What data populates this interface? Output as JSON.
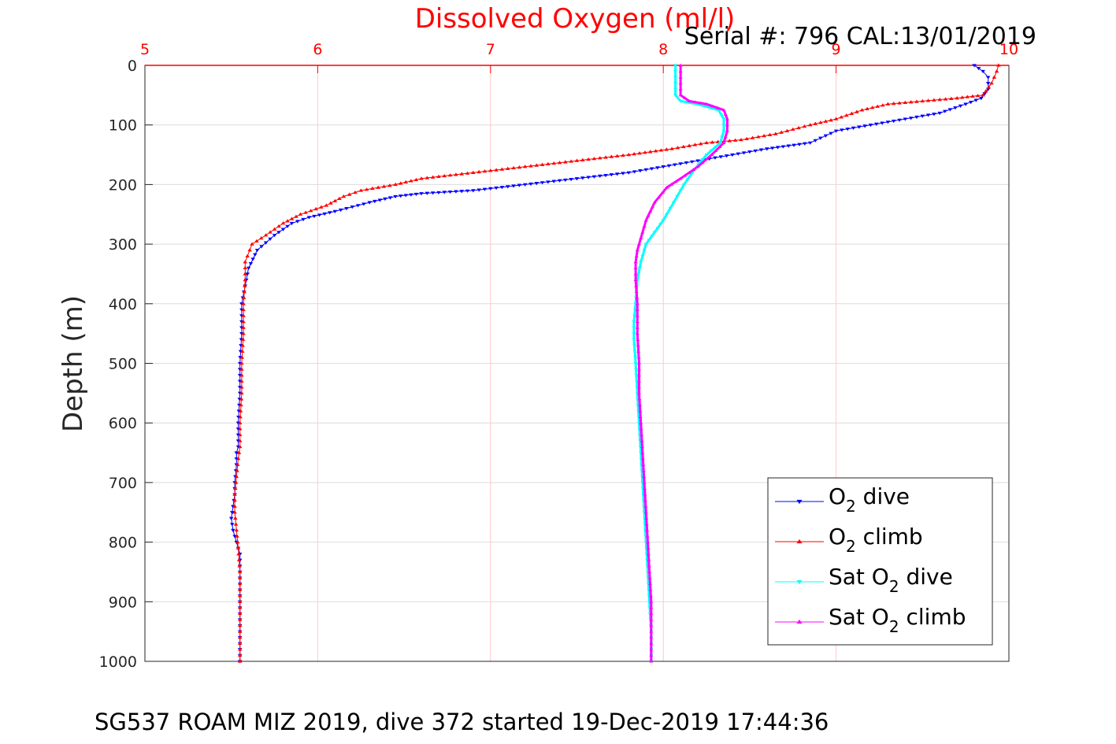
{
  "chart_data": {
    "type": "scatter",
    "title": "Dissolved Oxygen (ml/l)",
    "subtitle": "Serial #: 796  CAL:13/01/2019",
    "xlabel": "",
    "ylabel": "Depth (m)",
    "caption": "SG537 ROAM MIZ 2019, dive 372 started 19-Dec-2019 17:44:36",
    "xlim": [
      5,
      10
    ],
    "ylim": [
      0,
      1000
    ],
    "y_reversed": true,
    "x_axis_position": "top",
    "xticks": [
      "5",
      "6",
      "7",
      "8",
      "9",
      "10"
    ],
    "yticks": [
      "0",
      "100",
      "200",
      "300",
      "400",
      "500",
      "600",
      "700",
      "800",
      "900",
      "1000"
    ],
    "grid": true,
    "legend_position": "bottom-right",
    "series": [
      {
        "name_parts": [
          "O",
          "2",
          " dive"
        ],
        "color": "#0000ff",
        "marker": "triangle-down",
        "x": [
          9.8,
          9.85,
          9.88,
          9.88,
          9.84,
          9.75,
          9.6,
          9.4,
          9.2,
          9.0,
          8.85,
          8.6,
          8.4,
          8.2,
          8.0,
          7.8,
          7.5,
          7.2,
          6.9,
          6.6,
          6.45,
          6.3,
          6.1,
          5.95,
          5.85,
          5.75,
          5.65,
          5.6,
          5.58,
          5.56,
          5.56,
          5.55,
          5.55,
          5.54,
          5.54,
          5.53,
          5.53,
          5.52,
          5.52,
          5.51,
          5.5,
          5.51,
          5.53,
          5.55,
          5.55,
          5.55,
          5.55,
          5.55,
          5.55,
          5.55,
          5.55
        ],
        "y": [
          0,
          10,
          20,
          40,
          55,
          65,
          80,
          90,
          100,
          110,
          130,
          140,
          150,
          160,
          170,
          180,
          190,
          200,
          210,
          215,
          220,
          230,
          245,
          255,
          265,
          285,
          310,
          340,
          370,
          400,
          450,
          500,
          550,
          600,
          640,
          650,
          670,
          700,
          720,
          740,
          760,
          780,
          800,
          820,
          840,
          860,
          880,
          900,
          930,
          960,
          1000
        ]
      },
      {
        "name_parts": [
          "O",
          "2",
          " climb"
        ],
        "color": "#ff0000",
        "marker": "triangle-up",
        "x": [
          9.94,
          9.93,
          9.9,
          9.85,
          9.7,
          9.5,
          9.3,
          9.15,
          9.0,
          8.85,
          8.65,
          8.45,
          8.25,
          8.05,
          7.8,
          7.5,
          7.2,
          6.9,
          6.6,
          6.45,
          6.25,
          6.15,
          6.05,
          5.9,
          5.8,
          5.7,
          5.62,
          5.58,
          5.58,
          5.57,
          5.57,
          5.56,
          5.56,
          5.55,
          5.55,
          5.54,
          5.53,
          5.52,
          5.52,
          5.53,
          5.54,
          5.55,
          5.55,
          5.55,
          5.55,
          5.55,
          5.55
        ],
        "y": [
          0,
          10,
          30,
          50,
          55,
          60,
          65,
          75,
          90,
          100,
          115,
          125,
          130,
          140,
          150,
          160,
          170,
          180,
          190,
          200,
          210,
          220,
          235,
          250,
          265,
          285,
          300,
          330,
          360,
          400,
          450,
          500,
          550,
          600,
          640,
          660,
          690,
          720,
          750,
          780,
          810,
          850,
          880,
          910,
          940,
          970,
          1000
        ]
      },
      {
        "name_parts": [
          "Sat O",
          "2",
          " dive"
        ],
        "color": "#00ffff",
        "marker": "triangle-down",
        "x": [
          8.07,
          8.07,
          8.07,
          8.07,
          8.1,
          8.2,
          8.32,
          8.35,
          8.35,
          8.33,
          8.25,
          8.18,
          8.12,
          8.08,
          8.04,
          8.0,
          7.95,
          7.9,
          7.87,
          7.85,
          7.84,
          7.83,
          7.83,
          7.84,
          7.85,
          7.86,
          7.87,
          7.88,
          7.89,
          7.9,
          7.91,
          7.92,
          7.93,
          7.93,
          7.93
        ],
        "y": [
          0,
          20,
          40,
          50,
          60,
          65,
          75,
          90,
          110,
          130,
          150,
          175,
          200,
          220,
          240,
          260,
          280,
          300,
          330,
          360,
          400,
          430,
          460,
          500,
          550,
          600,
          650,
          700,
          750,
          800,
          850,
          900,
          950,
          980,
          1000
        ]
      },
      {
        "name_parts": [
          "Sat O",
          "2",
          " climb"
        ],
        "color": "#ff00ff",
        "marker": "triangle-up",
        "x": [
          8.1,
          8.1,
          8.1,
          8.1,
          8.15,
          8.25,
          8.35,
          8.37,
          8.37,
          8.35,
          8.28,
          8.2,
          8.1,
          8.02,
          7.95,
          7.9,
          7.87,
          7.85,
          7.84,
          7.84,
          7.85,
          7.85,
          7.86,
          7.86,
          7.87,
          7.88,
          7.89,
          7.9,
          7.91,
          7.92,
          7.93,
          7.93,
          7.93,
          7.93
        ],
        "y": [
          0,
          20,
          40,
          50,
          60,
          65,
          75,
          90,
          110,
          130,
          150,
          170,
          190,
          205,
          230,
          260,
          290,
          310,
          330,
          360,
          400,
          450,
          500,
          550,
          600,
          650,
          700,
          750,
          800,
          850,
          900,
          950,
          980,
          1000
        ]
      }
    ]
  }
}
